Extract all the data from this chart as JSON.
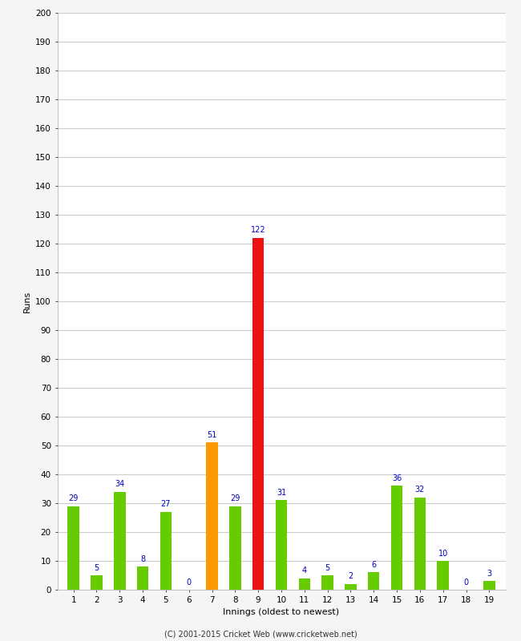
{
  "innings": [
    1,
    2,
    3,
    4,
    5,
    6,
    7,
    8,
    9,
    10,
    11,
    12,
    13,
    14,
    15,
    16,
    17,
    18,
    19
  ],
  "runs": [
    29,
    5,
    34,
    8,
    27,
    0,
    51,
    29,
    122,
    31,
    4,
    5,
    2,
    6,
    36,
    32,
    10,
    0,
    3
  ],
  "colors": [
    "#66cc00",
    "#66cc00",
    "#66cc00",
    "#66cc00",
    "#66cc00",
    "#66cc00",
    "#ff9900",
    "#66cc00",
    "#ee1111",
    "#66cc00",
    "#66cc00",
    "#66cc00",
    "#66cc00",
    "#66cc00",
    "#66cc00",
    "#66cc00",
    "#66cc00",
    "#66cc00",
    "#66cc00"
  ],
  "xlabel": "Innings (oldest to newest)",
  "ylabel": "Runs",
  "ylim": [
    0,
    200
  ],
  "yticks": [
    0,
    10,
    20,
    30,
    40,
    50,
    60,
    70,
    80,
    90,
    100,
    110,
    120,
    130,
    140,
    150,
    160,
    170,
    180,
    190,
    200
  ],
  "label_color": "#0000cc",
  "label_fontsize": 7,
  "axis_label_fontsize": 8,
  "tick_fontsize": 7.5,
  "footer": "(C) 2001-2015 Cricket Web (www.cricketweb.net)",
  "footer_fontsize": 7,
  "bg_color": "#f5f5f5",
  "plot_bg_color": "#ffffff",
  "grid_color": "#cccccc",
  "bar_width": 0.5
}
